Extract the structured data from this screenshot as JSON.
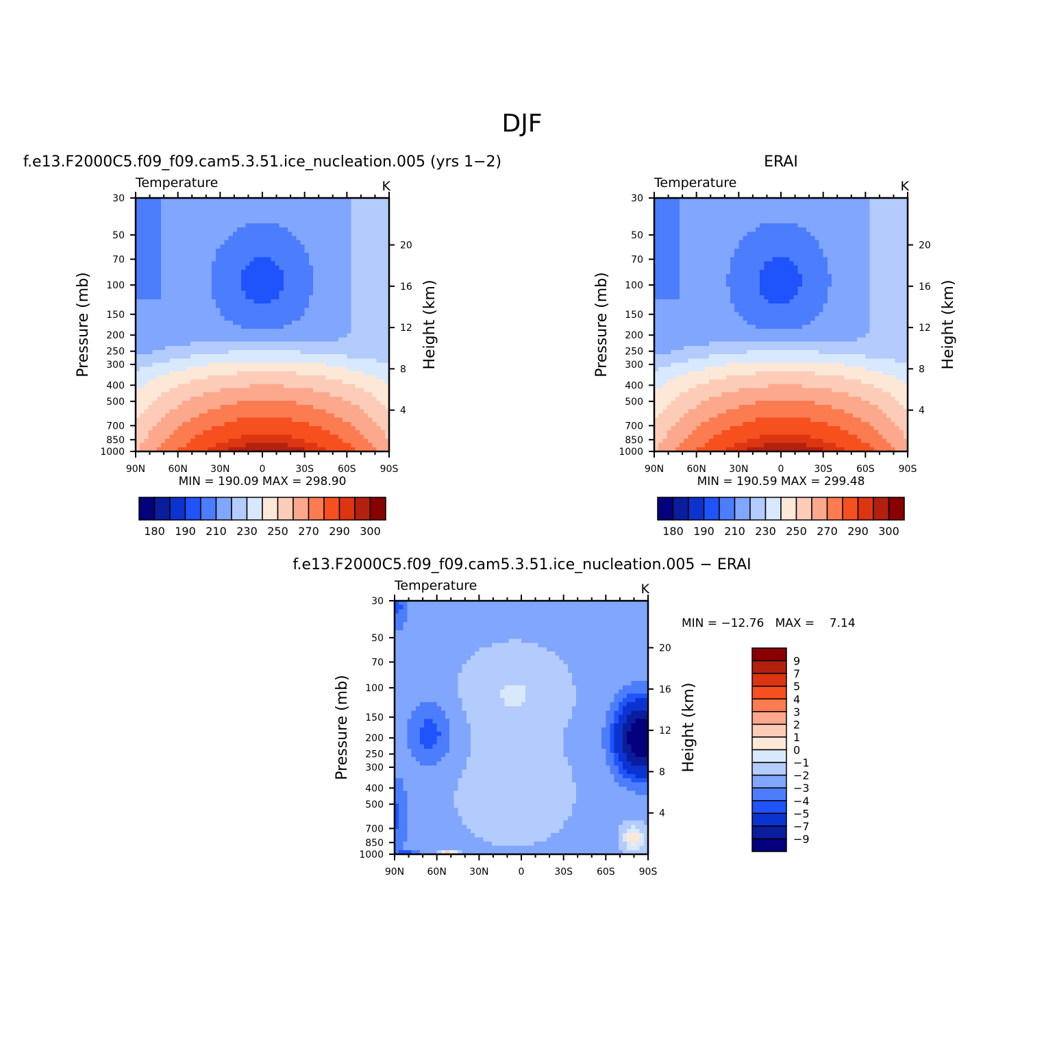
{
  "page_title": "DJF",
  "palettes": {
    "abs": [
      "#04007d",
      "#0a1d9c",
      "#0b33d0",
      "#1f53fc",
      "#4c7dfd",
      "#80a6fd",
      "#b3cbfd",
      "#d9e9fd",
      "#fde8d8",
      "#fdccb8",
      "#fca88c",
      "#fb7c50",
      "#f6501e",
      "#dc3512",
      "#b3200e",
      "#880000"
    ],
    "diff": [
      "#04007d",
      "#0a1d9c",
      "#0b33d0",
      "#1f53fc",
      "#4c7dfd",
      "#80a6fd",
      "#b3cbfd",
      "#d9e9fd",
      "#fde8d8",
      "#fdccb8",
      "#fca88c",
      "#fb7c50",
      "#f6501e",
      "#dc3512",
      "#b3200e",
      "#880000"
    ]
  },
  "shared_axes": {
    "pressure_ticks": [
      "30",
      "50",
      "70",
      "100",
      "150",
      "200",
      "250",
      "300",
      "400",
      "500",
      "700",
      "850",
      "1000"
    ],
    "pressure_values": [
      30,
      50,
      70,
      100,
      150,
      200,
      250,
      300,
      400,
      500,
      700,
      850,
      1000
    ],
    "height_ticks": [
      "20",
      "16",
      "12",
      "8",
      "4"
    ],
    "height_values": [
      20,
      16,
      12,
      8,
      4
    ],
    "lat_ticks": [
      "90N",
      "60N",
      "30N",
      "0",
      "30S",
      "60S",
      "90S"
    ],
    "ylabel": "Pressure (mb)",
    "ylabel_right": "Height (km)"
  },
  "chart_data": [
    {
      "type": "heatmap",
      "title": "f.e13.F2000C5.f09_f09.cam5.3.51.ice_nucleation.005 (yrs 1−2)",
      "subtitle_left": "Temperature",
      "subtitle_right": "K",
      "x_range": [
        -90,
        90
      ],
      "y_range_mb": [
        30,
        1000
      ],
      "min": "190.09",
      "max": "298.90",
      "min_max_text": "MIN = 190.09 MAX = 298.90",
      "legend_orientation": "horizontal",
      "levels": [
        180,
        185,
        190,
        200,
        210,
        220,
        230,
        240,
        250,
        260,
        270,
        280,
        290,
        295,
        300
      ],
      "level_labels": [
        "180",
        "190",
        "210",
        "230",
        "250",
        "270",
        "290",
        "300"
      ]
    },
    {
      "type": "heatmap",
      "title": "ERAI",
      "subtitle_left": "Temperature",
      "subtitle_right": "K",
      "x_range": [
        -90,
        90
      ],
      "y_range_mb": [
        30,
        1000
      ],
      "min": "190.59",
      "max": "299.48",
      "min_max_text": "MIN = 190.59 MAX = 299.48",
      "legend_orientation": "horizontal",
      "levels": [
        180,
        185,
        190,
        200,
        210,
        220,
        230,
        240,
        250,
        260,
        270,
        280,
        290,
        295,
        300
      ],
      "level_labels": [
        "180",
        "190",
        "210",
        "230",
        "250",
        "270",
        "290",
        "300"
      ]
    },
    {
      "type": "heatmap",
      "title": "f.e13.F2000C5.f09_f09.cam5.3.51.ice_nucleation.005 − ERAI",
      "subtitle_left": "Temperature",
      "subtitle_right": "K",
      "x_range": [
        -90,
        90
      ],
      "y_range_mb": [
        30,
        1000
      ],
      "min": "−12.76",
      "max": "7.14",
      "min_max_text": "MIN = −12.76   MAX =    7.14",
      "legend_orientation": "vertical",
      "levels": [
        -9,
        -7,
        -5,
        -4,
        -3,
        -2,
        -1,
        0,
        1,
        2,
        3,
        4,
        5,
        7,
        9
      ],
      "level_labels": [
        "9",
        "7",
        "5",
        "4",
        "3",
        "2",
        "1",
        "0",
        "−1",
        "−2",
        "−3",
        "−4",
        "−5",
        "−7",
        "−9"
      ]
    }
  ]
}
